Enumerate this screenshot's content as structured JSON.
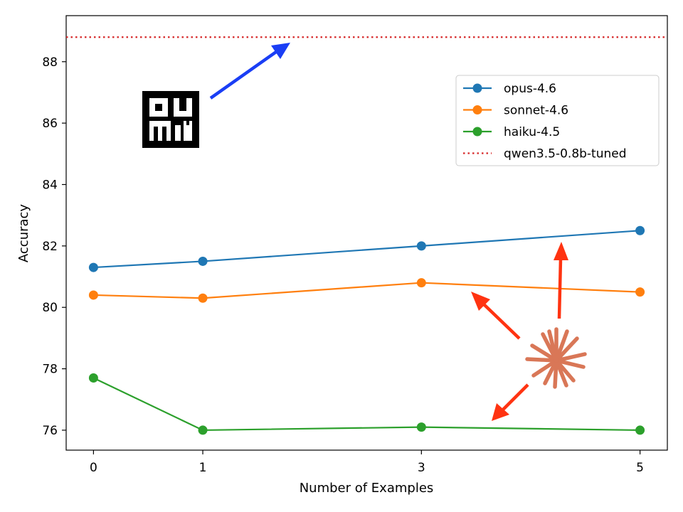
{
  "chart_data": {
    "type": "line",
    "title": "",
    "xlabel": "Number of Examples",
    "ylabel": "Accuracy",
    "x": [
      0,
      1,
      3,
      5
    ],
    "xticks": [
      "0",
      "1",
      "3",
      "5"
    ],
    "yticks": [
      "76",
      "78",
      "80",
      "82",
      "84",
      "86",
      "88"
    ],
    "xlim": [
      -0.25,
      5.25
    ],
    "ylim": [
      75.35,
      89.5
    ],
    "grid": false,
    "legend_position": "upper right",
    "series": [
      {
        "name": "opus-4.6",
        "values": [
          81.3,
          81.5,
          82.0,
          82.5
        ],
        "color": "#1f77b4",
        "style": "solid",
        "marker": "circle"
      },
      {
        "name": "sonnet-4.6",
        "values": [
          80.4,
          80.3,
          80.8,
          80.5
        ],
        "color": "#ff7f0e",
        "style": "solid",
        "marker": "circle"
      },
      {
        "name": "haiku-4.5",
        "values": [
          77.7,
          76.0,
          76.1,
          76.0
        ],
        "color": "#2ca02c",
        "style": "solid",
        "marker": "circle"
      }
    ],
    "reference_lines": [
      {
        "name": "qwen3.5-0.8b-tuned",
        "y": 88.8,
        "color": "#d62728",
        "style": "dotted"
      }
    ]
  },
  "annotations": {
    "left_logo_icon": "oumi-logo-icon",
    "right_logo_icon": "starburst-logo-icon",
    "arrow_colors": {
      "blue": "#1a3ef5",
      "red": "#ff3311"
    },
    "starburst_color": "#d97757"
  }
}
